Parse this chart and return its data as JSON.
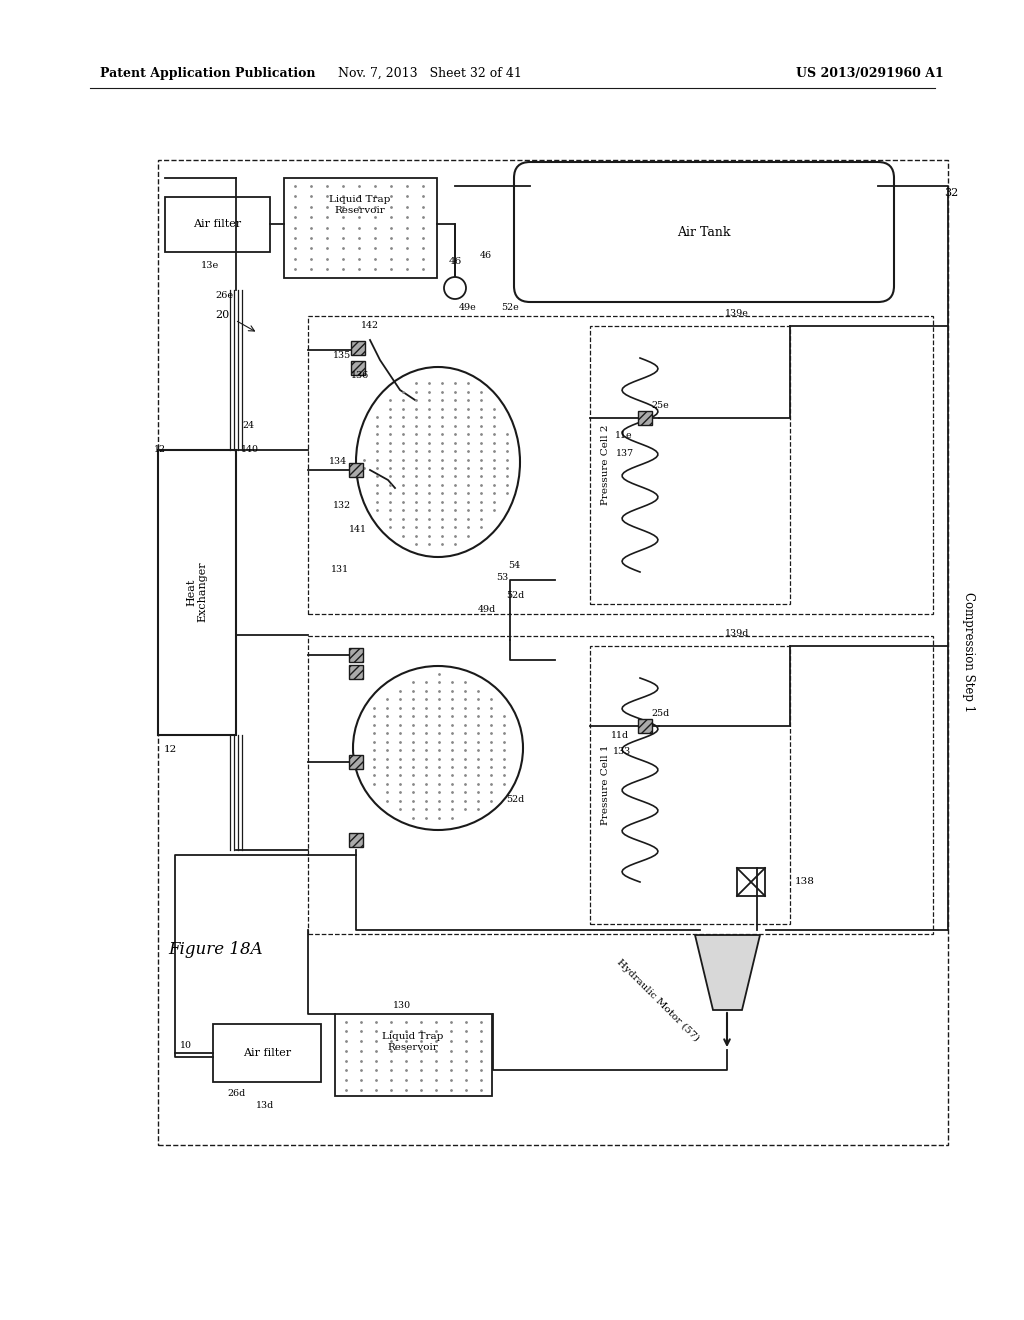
{
  "header_left": "Patent Application Publication",
  "header_mid": "Nov. 7, 2013   Sheet 32 of 41",
  "header_right": "US 2013/0291960 A1",
  "figure_label": "Figure 18A",
  "bg_color": "#ffffff",
  "line_color": "#1a1a1a",
  "gray": "#888888",
  "light_gray": "#cccccc"
}
